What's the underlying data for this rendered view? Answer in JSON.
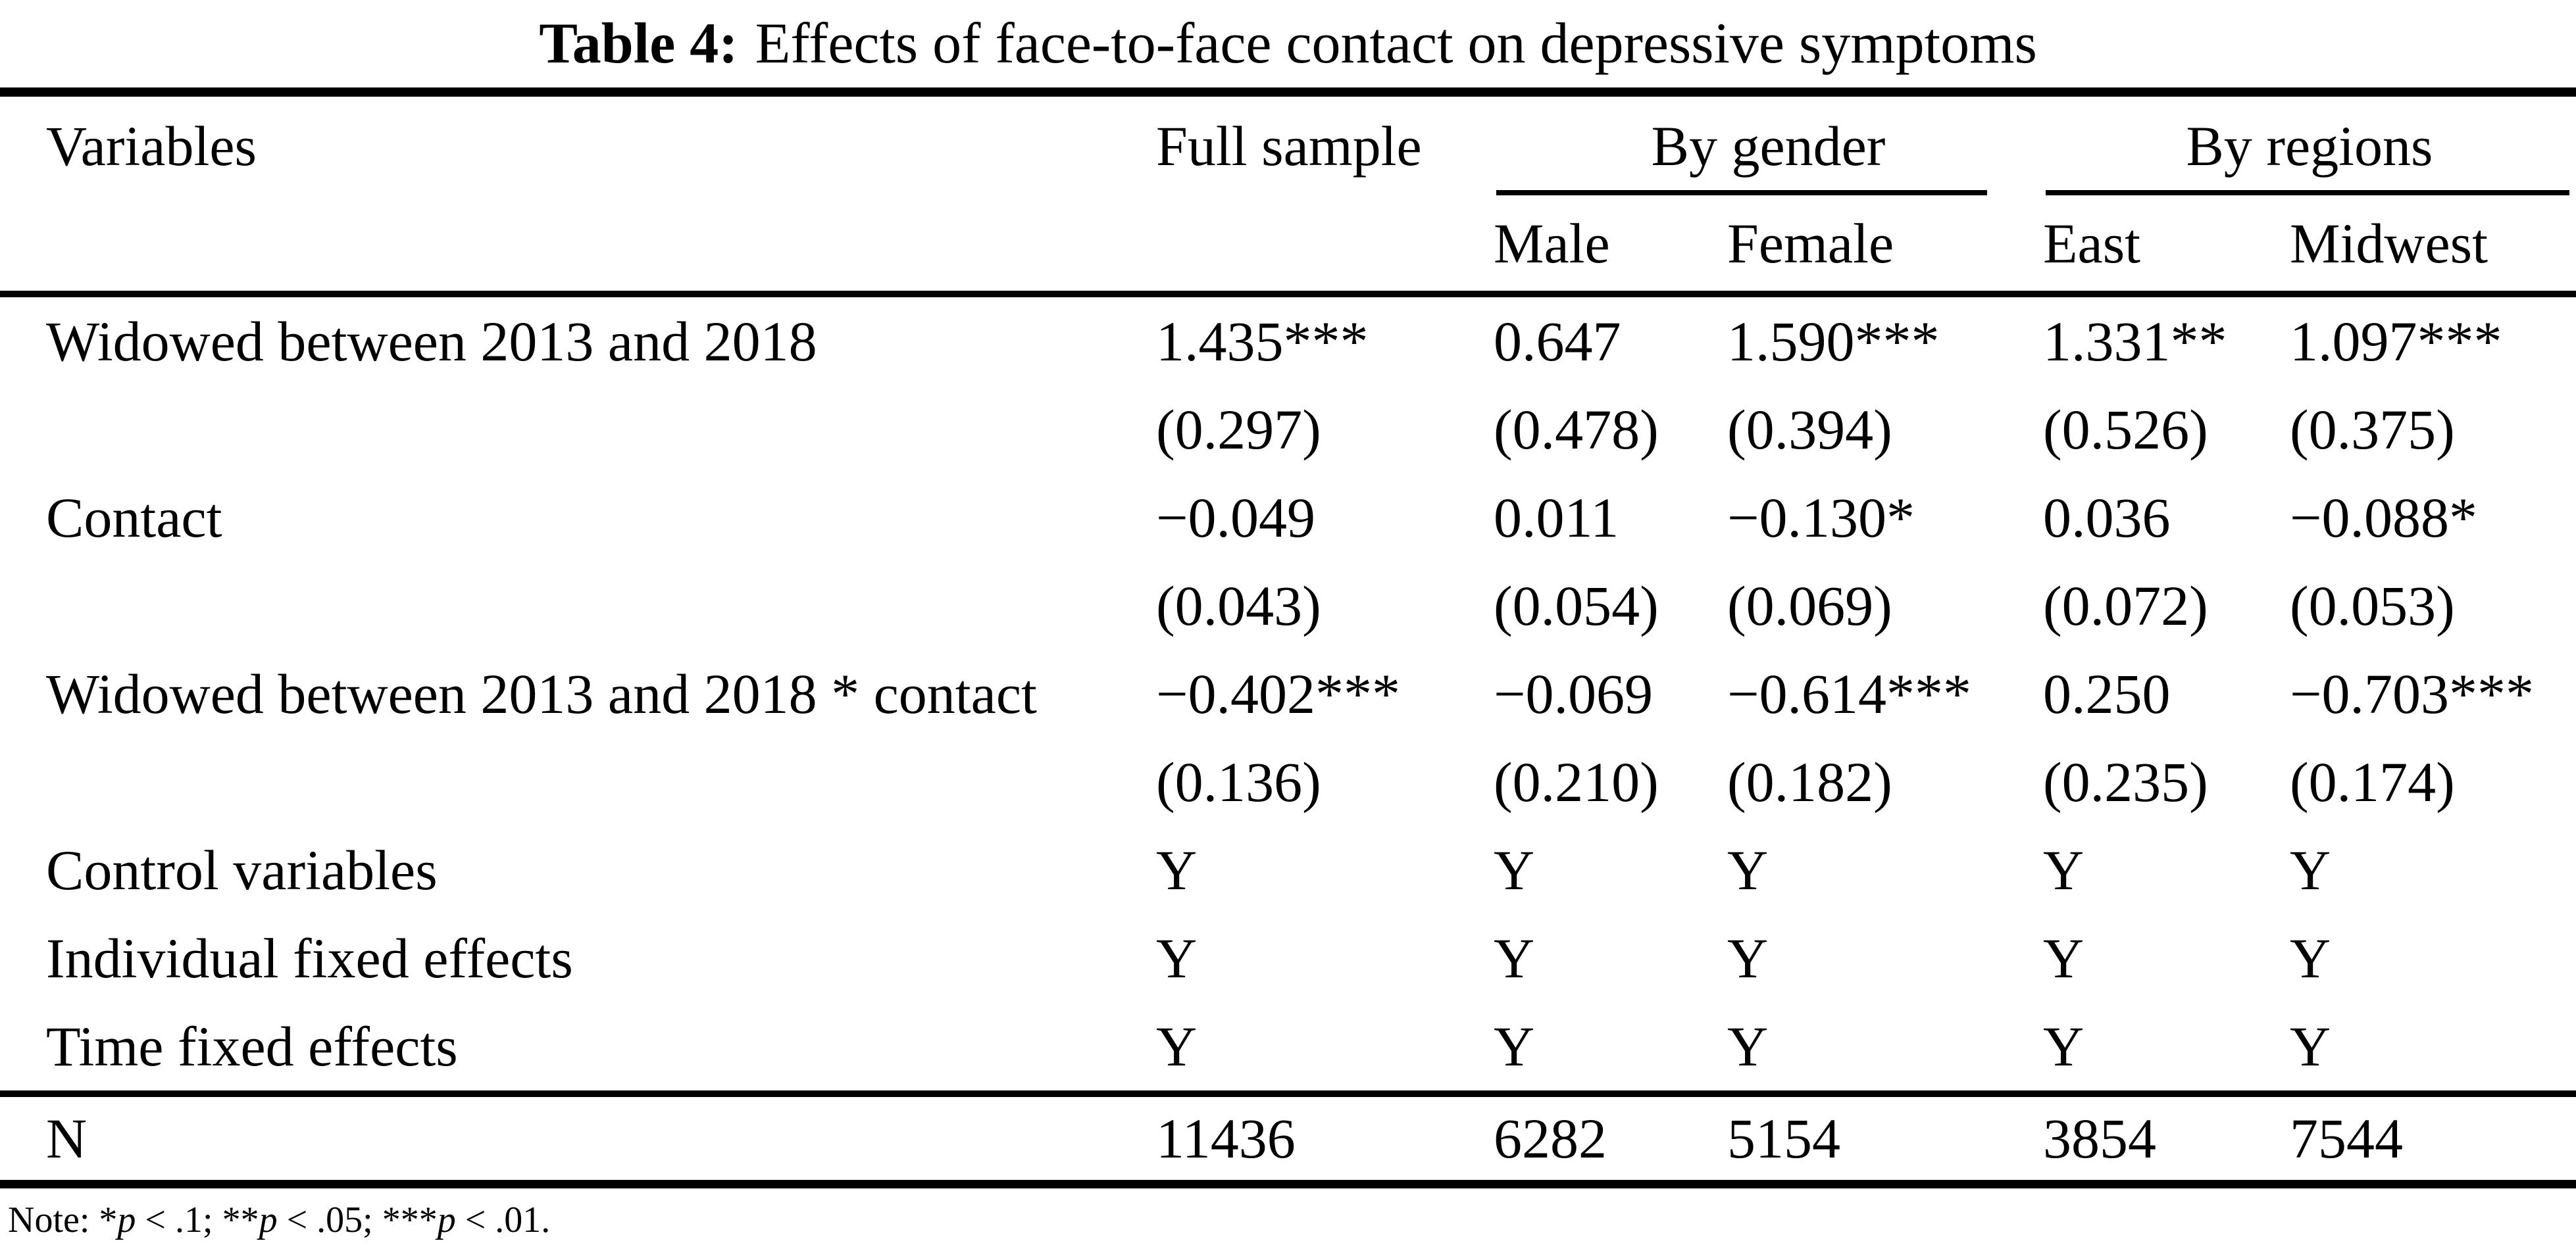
{
  "title": {
    "label": "Table 4:",
    "text": "Effects of face-to-face contact on depressive symptoms"
  },
  "table": {
    "header": {
      "variables_label": "Variables",
      "full_sample_label": "Full sample",
      "by_gender_label": "By gender",
      "by_regions_label": "By regions",
      "male_label": "Male",
      "female_label": "Female",
      "east_label": "East",
      "midwest_label": "Midwest"
    },
    "rows": [
      {
        "label": "Widowed between 2013 and 2018",
        "values": [
          "1.435***",
          "0.647",
          "1.590***",
          "1.331**",
          "1.097***"
        ]
      },
      {
        "label": "",
        "values": [
          "(0.297)",
          "(0.478)",
          "(0.394)",
          "(0.526)",
          "(0.375)"
        ]
      },
      {
        "label": "Contact",
        "values": [
          "−0.049",
          "0.011",
          "−0.130*",
          "0.036",
          "−0.088*"
        ]
      },
      {
        "label": "",
        "values": [
          "(0.043)",
          "(0.054)",
          "(0.069)",
          "(0.072)",
          "(0.053)"
        ]
      },
      {
        "label": "Widowed between 2013 and 2018 * contact",
        "values": [
          "−0.402***",
          "−0.069",
          "−0.614***",
          "0.250",
          "−0.703***"
        ]
      },
      {
        "label": "",
        "values": [
          "(0.136)",
          "(0.210)",
          "(0.182)",
          "(0.235)",
          "(0.174)"
        ]
      },
      {
        "label": "Control variables",
        "values": [
          "Y",
          "Y",
          "Y",
          "Y",
          "Y"
        ]
      },
      {
        "label": "Individual fixed effects",
        "values": [
          "Y",
          "Y",
          "Y",
          "Y",
          "Y"
        ]
      },
      {
        "label": "Time fixed effects",
        "values": [
          "Y",
          "Y",
          "Y",
          "Y",
          "Y"
        ]
      },
      {
        "label": "N",
        "values": [
          "11436",
          "6282",
          "5154",
          "3854",
          "7544"
        ]
      }
    ]
  },
  "note": {
    "segments": [
      {
        "text": "Note: *"
      },
      {
        "text": "p"
      },
      {
        "text": " < .1; **"
      },
      {
        "text": "p"
      },
      {
        "text": " < .05; ***"
      },
      {
        "text": "p"
      },
      {
        "text": " < .01."
      }
    ]
  }
}
